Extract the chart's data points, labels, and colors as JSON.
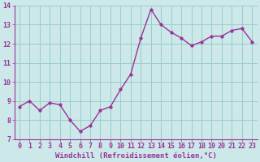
{
  "x": [
    0,
    1,
    2,
    3,
    4,
    5,
    6,
    7,
    8,
    9,
    10,
    11,
    12,
    13,
    14,
    15,
    16,
    17,
    18,
    19,
    20,
    21,
    22,
    23
  ],
  "y": [
    8.7,
    9.0,
    8.5,
    8.9,
    8.8,
    8.0,
    7.4,
    7.7,
    8.5,
    8.7,
    9.6,
    10.4,
    12.3,
    13.8,
    13.0,
    12.6,
    12.3,
    11.9,
    12.1,
    12.4,
    12.4,
    12.7,
    12.8,
    12.1
  ],
  "line_color": "#993399",
  "marker_color": "#993399",
  "bg_color": "#cce8e8",
  "grid_color": "#99cccc",
  "xlabel": "Windchill (Refroidissement éolien,°C)",
  "xlim": [
    -0.5,
    23.5
  ],
  "ylim": [
    7,
    14
  ],
  "yticks": [
    7,
    8,
    9,
    10,
    11,
    12,
    13,
    14
  ],
  "xticks": [
    0,
    1,
    2,
    3,
    4,
    5,
    6,
    7,
    8,
    9,
    10,
    11,
    12,
    13,
    14,
    15,
    16,
    17,
    18,
    19,
    20,
    21,
    22,
    23
  ],
  "tick_color": "#993399",
  "label_color": "#993399",
  "xlabel_fontsize": 6.5,
  "tick_fontsize": 6.0,
  "line_width": 1.0,
  "marker_size": 2.5
}
